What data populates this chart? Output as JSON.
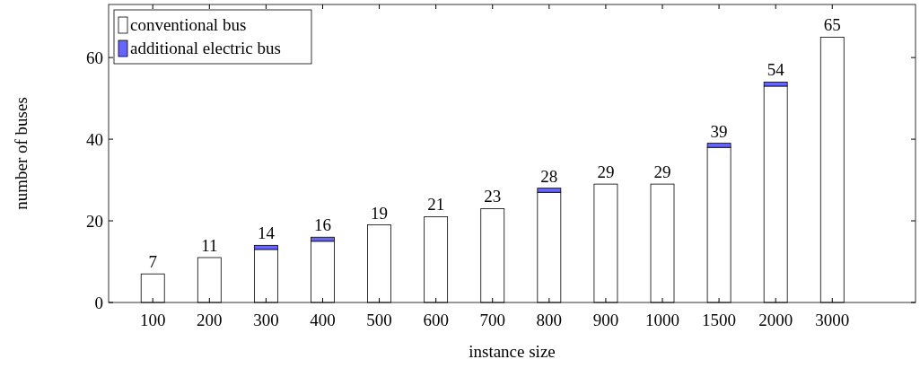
{
  "chart_data": {
    "type": "bar",
    "stacked": true,
    "xlabel": "instance size",
    "ylabel": "number of buses",
    "categories": [
      "100",
      "200",
      "300",
      "400",
      "500",
      "600",
      "700",
      "800",
      "900",
      "1000",
      "1500",
      "2000",
      "3000"
    ],
    "series": [
      {
        "name": "conventional bus",
        "color": "#ffffff",
        "values": [
          7,
          11,
          13,
          15,
          19,
          21,
          23,
          27,
          29,
          29,
          38,
          53,
          65
        ]
      },
      {
        "name": "additional electric bus",
        "color": "#6666ff",
        "values": [
          0,
          0,
          1,
          1,
          0,
          0,
          0,
          1,
          0,
          0,
          1,
          1,
          0
        ]
      }
    ],
    "totals": [
      "7",
      "11",
      "14",
      "16",
      "19",
      "21",
      "23",
      "28",
      "29",
      "29",
      "39",
      "54",
      "65"
    ],
    "ylim": [
      0,
      73
    ],
    "yticks": [
      0,
      20,
      40,
      60
    ],
    "grid": false,
    "legend": "top left"
  }
}
